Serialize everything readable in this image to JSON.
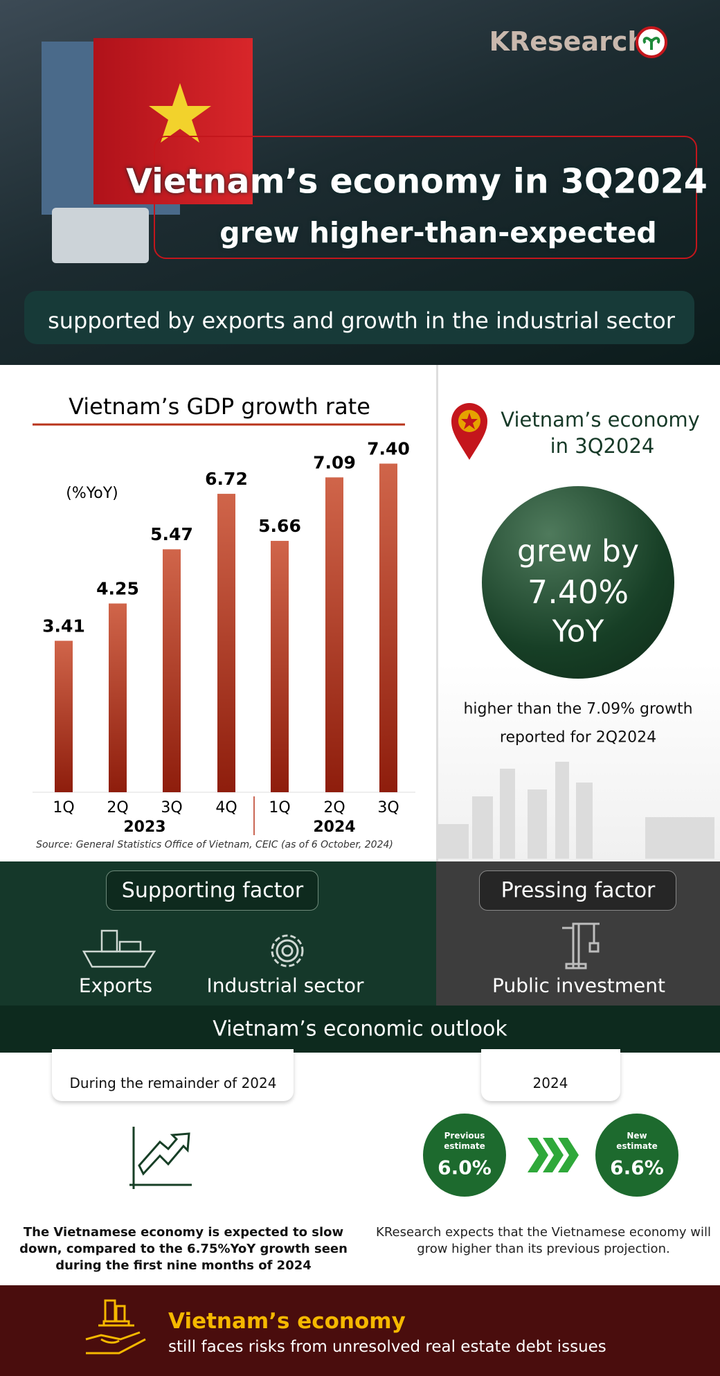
{
  "header": {
    "brand": "KResearch",
    "title_line1": "Vietnam’s economy in 3Q2024",
    "title_line2": "grew higher-than-expected",
    "subtitle": "supported by exports and growth in the industrial sector"
  },
  "chart_data": {
    "type": "bar",
    "title": "Vietnam’s GDP growth rate",
    "y_label": "(%YoY)",
    "categories": [
      "1Q",
      "2Q",
      "3Q",
      "4Q",
      "1Q",
      "2Q",
      "3Q"
    ],
    "groups": [
      "2023",
      "2024"
    ],
    "values": [
      3.41,
      4.25,
      5.47,
      6.72,
      5.66,
      7.09,
      7.4
    ],
    "value_labels": [
      "3.41",
      "4.25",
      "5.47",
      "6.72",
      "5.66",
      "7.09",
      "7.40"
    ],
    "ylim": [
      0,
      8
    ],
    "color": "#b8331a",
    "source": "Source: General Statistics Office of Vietnam, CEIC (as of 6 October, 2024)"
  },
  "highlight": {
    "heading_line1": "Vietnam’s economy",
    "heading_line2": "in 3Q2024",
    "circle_line1": "grew by",
    "circle_line2": "7.40%",
    "circle_line3": "YoY",
    "note_line1": "higher than the 7.09% growth",
    "note_line2": "reported for 2Q2024"
  },
  "factors": {
    "supporting": {
      "title": "Supporting factor",
      "items": [
        "Exports",
        "Industrial sector"
      ]
    },
    "pressing": {
      "title": "Pressing factor",
      "items": [
        "Public investment"
      ]
    }
  },
  "outlook": {
    "title": "Vietnam’s economic outlook",
    "left": {
      "tab": "During the remainder of 2024",
      "text": "The Vietnamese economy is expected to slow down, compared to the 6.75%YoY growth seen during the first nine months of 2024"
    },
    "right": {
      "tab": "2024",
      "previous_label": "Previous estimate",
      "previous_value": "6.0%",
      "new_label": "New estimate",
      "new_value": "6.6%",
      "text": "KResearch expects that the Vietnamese economy will grow higher than its previous projection."
    }
  },
  "footer": {
    "title": "Vietnam’s economy",
    "text": "still faces risks from unresolved real estate debt issues"
  }
}
